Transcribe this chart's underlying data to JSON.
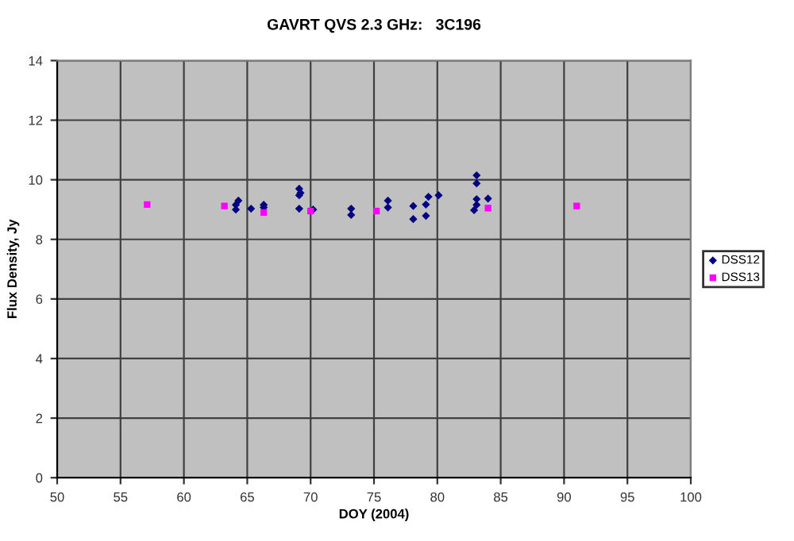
{
  "chart_data": {
    "type": "scatter",
    "title": "GAVRT QVS 2.3 GHz:   3C196",
    "xlabel": "DOY (2004)",
    "ylabel": "Flux Density, Jy",
    "xlim": [
      50,
      100
    ],
    "xticks": [
      50,
      55,
      60,
      65,
      70,
      75,
      80,
      85,
      90,
      95,
      100
    ],
    "ylim": [
      0,
      14
    ],
    "yticks": [
      0,
      2,
      4,
      6,
      8,
      10,
      12,
      14
    ],
    "grid": true,
    "legend": "right",
    "series": [
      {
        "name": "DSS12",
        "color": "#000080",
        "marker": "diamond",
        "x": [
          64.1,
          64.3,
          64.1,
          65.3,
          66.3,
          66.3,
          69.1,
          69.2,
          69.1,
          69.1,
          70.2,
          73.2,
          73.2,
          76.1,
          76.1,
          78.1,
          78.1,
          79.1,
          79.3,
          79.1,
          80.1,
          83.1,
          83.1,
          83.1,
          83.1,
          82.9,
          84.0
        ],
        "values": [
          9.16,
          9.3,
          9.0,
          9.03,
          9.16,
          9.07,
          9.7,
          9.56,
          9.48,
          9.03,
          9.0,
          9.03,
          8.82,
          9.3,
          9.07,
          9.12,
          8.68,
          9.17,
          9.43,
          8.79,
          9.48,
          10.15,
          9.88,
          9.35,
          9.16,
          8.98,
          9.37
        ]
      },
      {
        "name": "DSS13",
        "color": "#ff00ff",
        "marker": "square",
        "x": [
          57.1,
          63.2,
          66.3,
          70.0,
          75.2,
          84.0,
          91.0
        ],
        "values": [
          9.17,
          9.12,
          8.9,
          8.95,
          8.95,
          9.05,
          9.12
        ]
      }
    ]
  }
}
